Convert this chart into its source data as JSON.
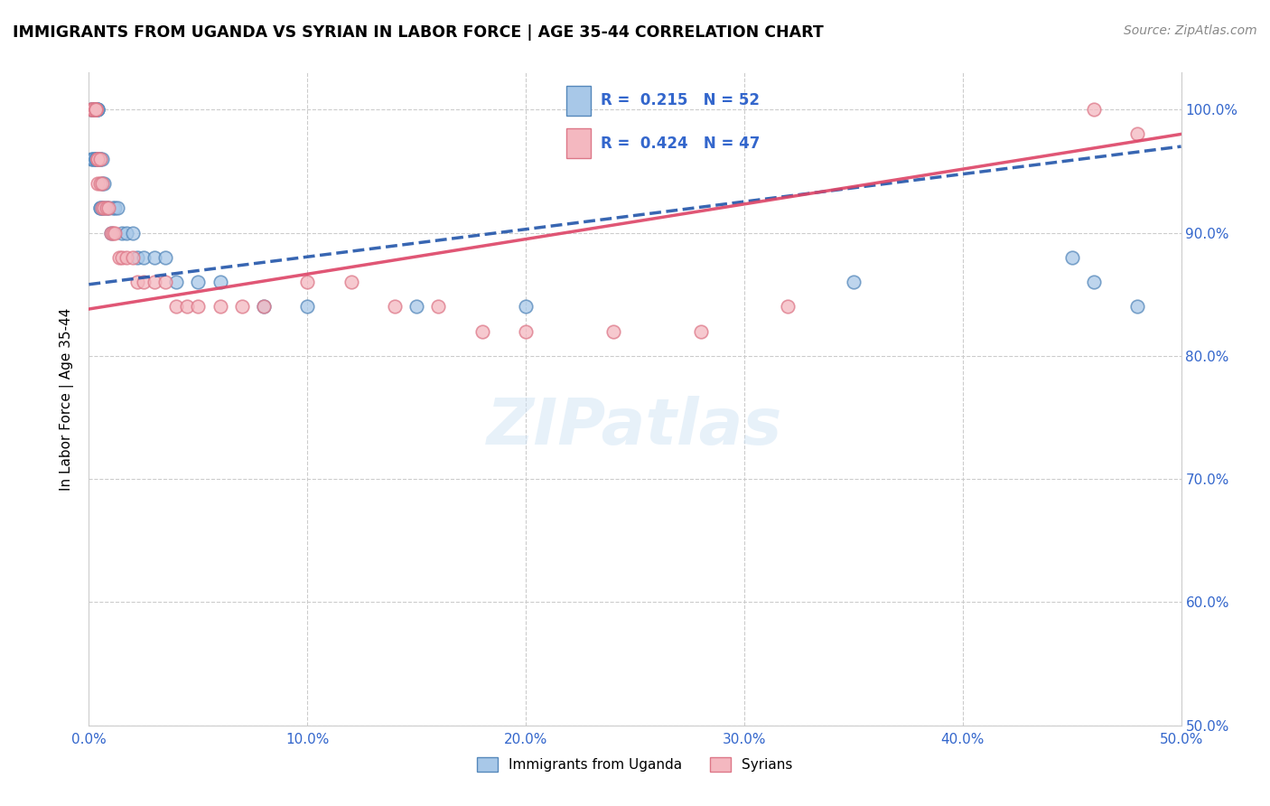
{
  "title": "IMMIGRANTS FROM UGANDA VS SYRIAN IN LABOR FORCE | AGE 35-44 CORRELATION CHART",
  "source": "Source: ZipAtlas.com",
  "ylabel": "In Labor Force | Age 35-44",
  "xlim": [
    0.0,
    0.5
  ],
  "ylim": [
    0.5,
    1.03
  ],
  "xticks": [
    0.0,
    0.1,
    0.2,
    0.3,
    0.4,
    0.5
  ],
  "xticklabels": [
    "0.0%",
    "10.0%",
    "20.0%",
    "30.0%",
    "40.0%",
    "50.0%"
  ],
  "yticks": [
    0.5,
    0.6,
    0.7,
    0.8,
    0.9,
    1.0
  ],
  "yticklabels": [
    "50.0%",
    "60.0%",
    "70.0%",
    "80.0%",
    "90.0%",
    "100.0%"
  ],
  "uganda_color": "#a8c8e8",
  "syrian_color": "#f4b8c0",
  "uganda_edge": "#5588bb",
  "syrian_edge": "#dd7788",
  "uganda_line_color": "#2255aa",
  "syrian_line_color": "#dd4466",
  "uganda_x": [
    0.001,
    0.001,
    0.001,
    0.002,
    0.002,
    0.002,
    0.002,
    0.002,
    0.003,
    0.003,
    0.003,
    0.003,
    0.003,
    0.003,
    0.004,
    0.004,
    0.004,
    0.004,
    0.004,
    0.005,
    0.005,
    0.005,
    0.005,
    0.006,
    0.006,
    0.006,
    0.007,
    0.007,
    0.008,
    0.009,
    0.01,
    0.011,
    0.012,
    0.013,
    0.015,
    0.017,
    0.02,
    0.022,
    0.025,
    0.03,
    0.035,
    0.04,
    0.05,
    0.06,
    0.08,
    0.1,
    0.15,
    0.2,
    0.35,
    0.45,
    0.46,
    0.48
  ],
  "uganda_y": [
    1.0,
    1.0,
    0.96,
    0.96,
    1.0,
    1.0,
    1.0,
    0.96,
    1.0,
    1.0,
    0.96,
    0.96,
    1.0,
    0.96,
    1.0,
    1.0,
    0.96,
    0.96,
    1.0,
    0.96,
    0.96,
    0.92,
    0.92,
    0.94,
    0.92,
    0.96,
    0.92,
    0.94,
    0.92,
    0.92,
    0.9,
    0.92,
    0.92,
    0.92,
    0.9,
    0.9,
    0.9,
    0.88,
    0.88,
    0.88,
    0.88,
    0.86,
    0.86,
    0.86,
    0.84,
    0.84,
    0.84,
    0.84,
    0.86,
    0.88,
    0.86,
    0.84
  ],
  "syrian_x": [
    0.001,
    0.001,
    0.002,
    0.002,
    0.003,
    0.003,
    0.003,
    0.003,
    0.004,
    0.004,
    0.004,
    0.004,
    0.005,
    0.005,
    0.006,
    0.006,
    0.007,
    0.008,
    0.009,
    0.01,
    0.011,
    0.012,
    0.014,
    0.015,
    0.017,
    0.02,
    0.022,
    0.025,
    0.03,
    0.035,
    0.04,
    0.045,
    0.05,
    0.06,
    0.07,
    0.08,
    0.1,
    0.12,
    0.14,
    0.16,
    0.18,
    0.2,
    0.24,
    0.28,
    0.32,
    0.46,
    0.48
  ],
  "syrian_y": [
    1.0,
    1.0,
    1.0,
    1.0,
    1.0,
    1.0,
    1.0,
    1.0,
    0.96,
    0.96,
    0.96,
    0.94,
    0.96,
    0.94,
    0.94,
    0.92,
    0.92,
    0.92,
    0.92,
    0.9,
    0.9,
    0.9,
    0.88,
    0.88,
    0.88,
    0.88,
    0.86,
    0.86,
    0.86,
    0.86,
    0.84,
    0.84,
    0.84,
    0.84,
    0.84,
    0.84,
    0.86,
    0.86,
    0.84,
    0.84,
    0.82,
    0.82,
    0.82,
    0.82,
    0.84,
    1.0,
    0.98
  ],
  "trend_uganda_x0": 0.0,
  "trend_uganda_y0": 0.858,
  "trend_uganda_x1": 0.5,
  "trend_uganda_y1": 0.97,
  "trend_syrian_x0": 0.0,
  "trend_syrian_y0": 0.838,
  "trend_syrian_x1": 0.5,
  "trend_syrian_y1": 0.98
}
